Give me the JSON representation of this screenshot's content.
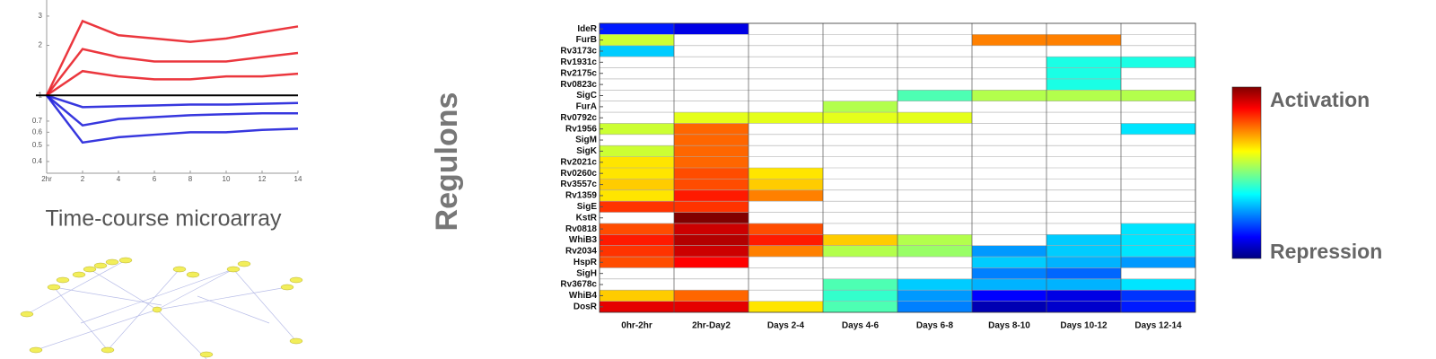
{
  "chart_data": [
    {
      "type": "heatmap",
      "ylabel": "Regulons",
      "rows": [
        "IdeR",
        "FurB",
        "Rv3173c",
        "Rv1931c",
        "Rv2175c",
        "Rv0823c",
        "SigC",
        "FurA",
        "Rv0792c",
        "Rv1956",
        "SigM",
        "SigK",
        "Rv2021c",
        "Rv0260c",
        "Rv3557c",
        "Rv1359",
        "SigE",
        "KstR",
        "Rv0818",
        "WhiB3",
        "Rv2034",
        "HspR",
        "SigH",
        "Rv3678c",
        "WhiB4",
        "DosR"
      ],
      "categories": [
        "0hr-2hr",
        "2hr-Day2",
        "Days 2-4",
        "Days 4-6",
        "Days 6-8",
        "Days 8-10",
        "Days 10-12",
        "Days 12-14"
      ],
      "values": [
        [
          -0.7,
          -0.8,
          null,
          null,
          null,
          null,
          null,
          null
        ],
        [
          0.15,
          null,
          null,
          null,
          null,
          0.5,
          0.5,
          null
        ],
        [
          -0.35,
          null,
          null,
          null,
          null,
          null,
          null,
          null
        ],
        [
          null,
          null,
          null,
          null,
          null,
          null,
          -0.2,
          -0.2
        ],
        [
          null,
          null,
          null,
          null,
          null,
          null,
          -0.2,
          null
        ],
        [
          null,
          null,
          null,
          null,
          null,
          null,
          -0.2,
          null
        ],
        [
          null,
          null,
          null,
          null,
          -0.1,
          0.1,
          0.1,
          0.1
        ],
        [
          null,
          null,
          null,
          0.1,
          null,
          null,
          null,
          null
        ],
        [
          null,
          0.2,
          0.2,
          0.2,
          0.2,
          null,
          null,
          null
        ],
        [
          0.15,
          0.55,
          null,
          null,
          null,
          null,
          null,
          -0.3
        ],
        [
          null,
          0.55,
          null,
          null,
          null,
          null,
          null,
          null
        ],
        [
          0.15,
          0.55,
          null,
          null,
          null,
          null,
          null,
          null
        ],
        [
          0.3,
          0.55,
          null,
          null,
          null,
          null,
          null,
          null
        ],
        [
          0.3,
          0.6,
          0.3,
          null,
          null,
          null,
          null,
          null
        ],
        [
          0.35,
          0.6,
          0.35,
          null,
          null,
          null,
          null,
          null
        ],
        [
          0.3,
          0.7,
          0.5,
          null,
          null,
          null,
          null,
          null
        ],
        [
          0.65,
          0.65,
          null,
          null,
          null,
          null,
          null,
          null
        ],
        [
          null,
          1.0,
          null,
          null,
          null,
          null,
          null,
          null
        ],
        [
          0.6,
          0.85,
          0.6,
          null,
          null,
          null,
          null,
          -0.3
        ],
        [
          0.7,
          0.9,
          0.7,
          0.35,
          0.1,
          null,
          -0.35,
          -0.3
        ],
        [
          0.65,
          0.85,
          0.5,
          0.1,
          0.05,
          -0.45,
          -0.35,
          -0.3
        ],
        [
          0.6,
          0.75,
          null,
          null,
          null,
          -0.35,
          -0.4,
          -0.45
        ],
        [
          null,
          null,
          null,
          null,
          null,
          -0.5,
          -0.55,
          null
        ],
        [
          null,
          null,
          null,
          -0.1,
          -0.35,
          -0.4,
          -0.4,
          -0.3
        ],
        [
          0.35,
          0.55,
          null,
          -0.15,
          -0.45,
          -0.75,
          -0.8,
          -0.65
        ],
        [
          0.8,
          0.8,
          0.3,
          -0.1,
          -0.5,
          -0.9,
          -0.85,
          -0.7
        ]
      ],
      "colormap": "jet",
      "clim": [
        -1,
        1
      ],
      "colorbar": {
        "high_label": "Activation",
        "low_label": "Repression"
      }
    },
    {
      "type": "line",
      "caption": "Time-course microarray",
      "log_y": true,
      "xlim": [
        0,
        14
      ],
      "ylim": [
        0.34,
        3.75
      ],
      "xticks": [
        {
          "value": 0,
          "label": "2hr"
        },
        2,
        4,
        6,
        8,
        10,
        12,
        14
      ],
      "yticks": [
        0.4,
        0.5,
        0.6,
        0.7,
        1,
        2,
        3
      ],
      "reference_line": 1,
      "series": [
        {
          "color": "#e8141c",
          "x": [
            0,
            2,
            4,
            6,
            8,
            10,
            12,
            14
          ],
          "values": [
            1,
            2.8,
            2.3,
            2.2,
            2.1,
            2.2,
            2.4,
            2.6
          ]
        },
        {
          "color": "#e8141c",
          "x": [
            0,
            2,
            4,
            6,
            8,
            10,
            12,
            14
          ],
          "values": [
            1,
            1.9,
            1.7,
            1.6,
            1.6,
            1.6,
            1.7,
            1.8
          ]
        },
        {
          "color": "#e8141c",
          "x": [
            0,
            2,
            4,
            6,
            8,
            10,
            12,
            14
          ],
          "values": [
            1,
            1.4,
            1.3,
            1.25,
            1.25,
            1.3,
            1.3,
            1.35
          ]
        },
        {
          "color": "#1414d8",
          "x": [
            0,
            2,
            4,
            6,
            8,
            10,
            12,
            14
          ],
          "values": [
            1,
            0.85,
            0.86,
            0.87,
            0.88,
            0.88,
            0.89,
            0.9
          ]
        },
        {
          "color": "#1414d8",
          "x": [
            0,
            2,
            4,
            6,
            8,
            10,
            12,
            14
          ],
          "values": [
            1,
            0.66,
            0.72,
            0.74,
            0.76,
            0.77,
            0.78,
            0.78
          ]
        },
        {
          "color": "#1414d8",
          "x": [
            0,
            2,
            4,
            6,
            8,
            10,
            12,
            14
          ],
          "values": [
            1,
            0.52,
            0.56,
            0.58,
            0.6,
            0.6,
            0.62,
            0.63
          ]
        }
      ]
    }
  ]
}
